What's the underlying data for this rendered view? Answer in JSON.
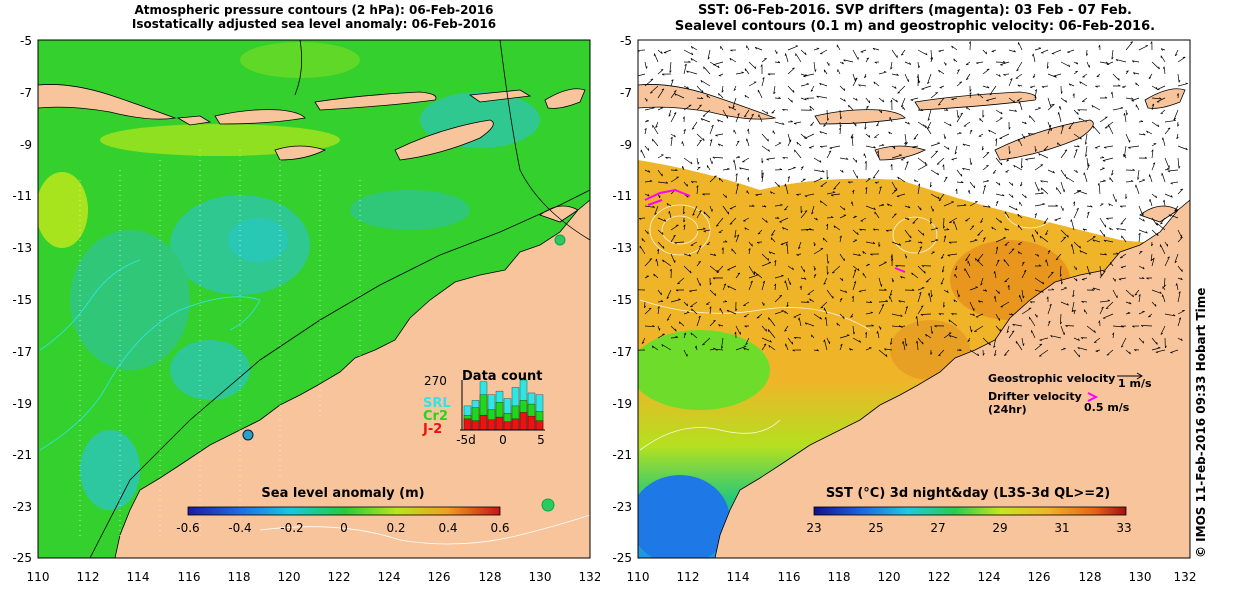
{
  "left_panel": {
    "title_line1": "Atmospheric pressure contours (2 hPa): 06-Feb-2016",
    "title_line2": "Isostatically adjusted sea level anomaly: 06-Feb-2016",
    "y_ticks": [
      "-5",
      "-7",
      "-9",
      "-11",
      "-13",
      "-15",
      "-17",
      "-19",
      "-21",
      "-23",
      "-25"
    ],
    "x_ticks": [
      "110",
      "112",
      "114",
      "116",
      "118",
      "120",
      "122",
      "124",
      "126",
      "128",
      "130",
      "132"
    ],
    "colorbar": {
      "title": "Sea level anomaly (m)",
      "ticks": [
        "-0.6",
        "-0.4",
        "-0.2",
        "0",
        "0.2",
        "0.4",
        "0.6"
      ],
      "range": [
        -0.6,
        0.6
      ]
    },
    "data_count": {
      "title": "Data count",
      "max_label": "270",
      "series": [
        "SRL",
        "Cr2",
        "J-2"
      ],
      "series_colors": [
        "#2ee6e6",
        "#1ed81e",
        "#ee1111"
      ],
      "x_ticks": [
        "-5d",
        "0",
        "5"
      ],
      "stacks": [
        [
          60,
          80,
          130
        ],
        [
          50,
          120,
          160
        ],
        [
          80,
          190,
          260
        ],
        [
          55,
          110,
          190
        ],
        [
          70,
          150,
          210
        ],
        [
          45,
          90,
          170
        ],
        [
          60,
          130,
          230
        ],
        [
          95,
          160,
          270
        ],
        [
          75,
          140,
          200
        ],
        [
          50,
          100,
          190
        ]
      ]
    }
  },
  "right_panel": {
    "title_line1": "SST: 06-Feb-2016. SVP drifters (magenta): 03 Feb - 07 Feb.",
    "title_line2": "Sealevel contours (0.1 m) and geostrophic velocity: 06-Feb-2016.",
    "y_ticks": [
      "-5",
      "-7",
      "-9",
      "-11",
      "-13",
      "-15",
      "-17",
      "-19",
      "-21",
      "-23",
      "-25"
    ],
    "x_ticks": [
      "110",
      "112",
      "114",
      "116",
      "118",
      "120",
      "122",
      "124",
      "126",
      "128",
      "130",
      "132"
    ],
    "legend": {
      "geo_label": "Geostrophic velocity",
      "geo_scale": "1 m/s",
      "drifter_label": "Drifter velocity",
      "drifter_sub": "(24hr)",
      "drifter_scale": "0.5 m/s"
    },
    "colorbar": {
      "title": "SST (°C) 3d night&day (L3S-3d QL>=2)",
      "ticks": [
        "23",
        "25",
        "27",
        "29",
        "31",
        "33"
      ],
      "range": [
        23,
        33
      ]
    }
  },
  "credit": "© IMOS 11-Feb-2016 09:33 Hobart Time",
  "colors": {
    "land": "#f7c49c",
    "ocean_green": "#3cd23c",
    "ocean_cyan": "#28c8a0",
    "sst_orange": "#f0b428",
    "sst_blue": "#1e96e6",
    "drifter": "#ff00ff"
  }
}
